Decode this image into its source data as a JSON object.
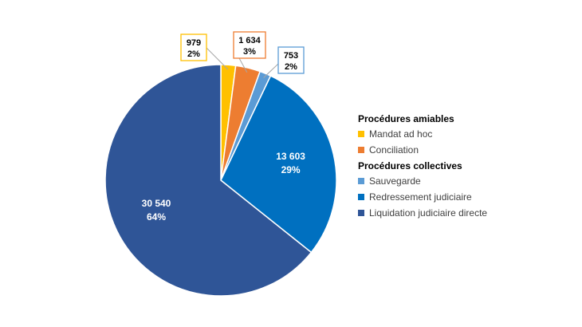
{
  "chart_data": {
    "type": "pie",
    "slices": [
      {
        "name": "Mandat ad hoc",
        "value": 979,
        "value_label": "979",
        "percent_label": "2%",
        "color": "#FFC000",
        "label_style": "callout"
      },
      {
        "name": "Conciliation",
        "value": 1634,
        "value_label": "1 634",
        "percent_label": "3%",
        "color": "#ED7D31",
        "label_style": "callout"
      },
      {
        "name": "Sauvegarde",
        "value": 753,
        "value_label": "753",
        "percent_label": "2%",
        "color": "#5B9BD5",
        "label_style": "callout"
      },
      {
        "name": "Redressement judiciaire",
        "value": 13603,
        "value_label": "13 603",
        "percent_label": "29%",
        "color": "#0070C0",
        "label_style": "inside"
      },
      {
        "name": "Liquidation judiciaire directe",
        "value": 30540,
        "value_label": "30 540",
        "percent_label": "64%",
        "color": "#2F5597",
        "label_style": "inside"
      }
    ],
    "legend": {
      "placement": "right",
      "groups": [
        {
          "title": "Procédures amiables",
          "items": [
            "Mandat ad hoc",
            "Conciliation"
          ]
        },
        {
          "title": "Procédures collectives",
          "items": [
            "Sauvegarde",
            "Redressement judiciaire",
            "Liquidation judiciaire directe"
          ]
        }
      ]
    }
  }
}
